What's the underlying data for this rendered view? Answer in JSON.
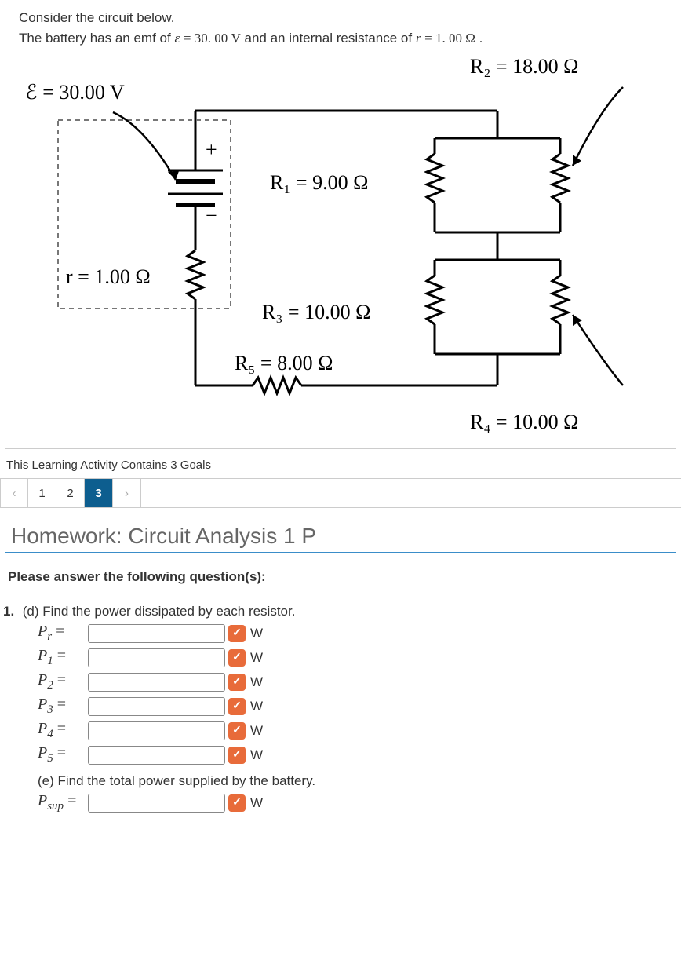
{
  "problem": {
    "line1": "Consider the circuit below.",
    "line2_a": "The battery has an emf of ",
    "emf_var": "ε",
    "emf_eq": " = ",
    "emf_val": "30. 00 V",
    "line2_b": " and an internal resistance of ",
    "r_var": "r",
    "r_eq": " = ",
    "r_val": "1. 00 Ω",
    "period": "."
  },
  "circuit": {
    "emf_label": "ℰ = 30.00 V",
    "r_label": "r = 1.00 Ω",
    "R1_label": "R₁ = 9.00 Ω",
    "R2_label": "R₂ = 18.00 Ω",
    "R3_label": "R₃ = 10.00 Ω",
    "R4_label": "R₄ = 10.00 Ω",
    "R5_label": "R₅ = 8.00 Ω",
    "color_wire": "#000000",
    "color_dashed": "#666666",
    "stroke_width": 3
  },
  "goals_text": "This Learning Activity Contains 3 Goals",
  "pager": {
    "prev": "‹",
    "items": [
      "1",
      "2",
      "3"
    ],
    "active_index": 2,
    "next": "›"
  },
  "section_title": "Homework: Circuit Analysis 1 P",
  "instructions": "Please answer the following question(s):",
  "question": {
    "number": "1.",
    "part_d_text": "(d) Find the power dissipated by each resistor.",
    "answers": [
      {
        "label_main": "P",
        "label_sub": "r",
        "unit": "W"
      },
      {
        "label_main": "P",
        "label_sub": "1",
        "unit": "W"
      },
      {
        "label_main": "P",
        "label_sub": "2",
        "unit": "W"
      },
      {
        "label_main": "P",
        "label_sub": "3",
        "unit": "W"
      },
      {
        "label_main": "P",
        "label_sub": "4",
        "unit": "W"
      },
      {
        "label_main": "P",
        "label_sub": "5",
        "unit": "W"
      }
    ],
    "part_e_text": "(e) Find the total power supplied by the battery.",
    "answer_e": {
      "label_main": "P",
      "label_sub": "sup",
      "unit": "W"
    }
  }
}
